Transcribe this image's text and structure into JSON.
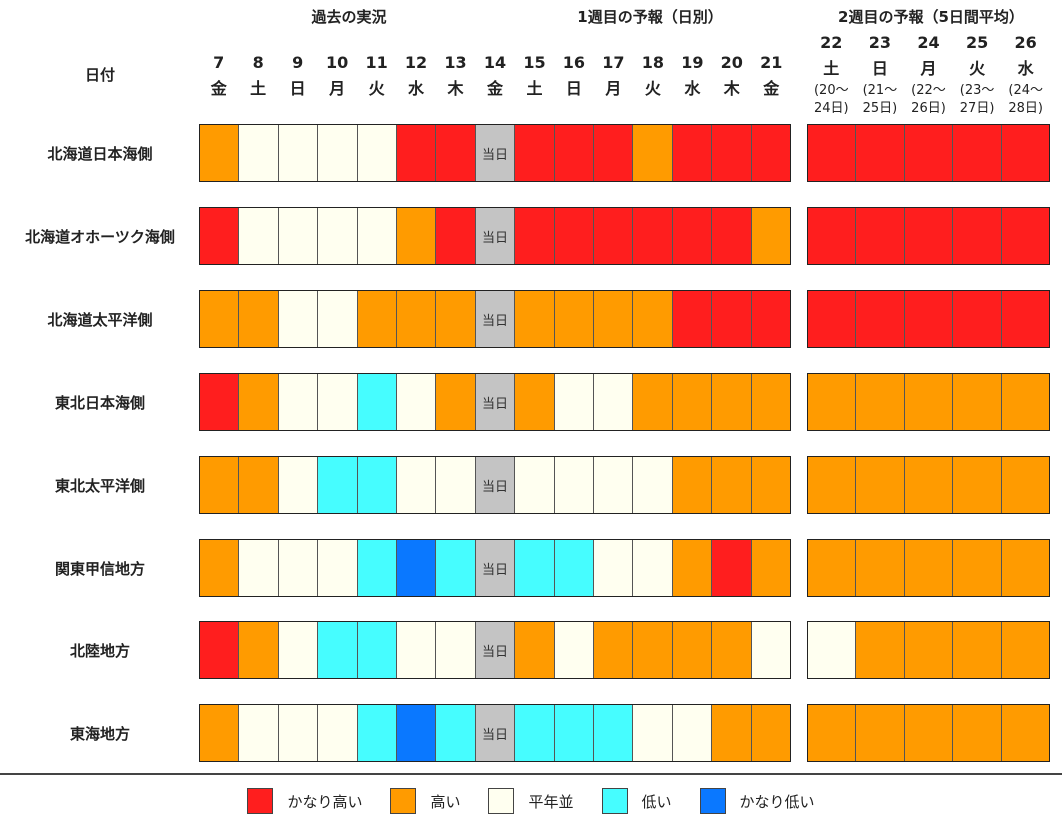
{
  "colors": {
    "very_high": "#ff1e1e",
    "high": "#ff9b00",
    "normal": "#fffff0",
    "low": "#46fdff",
    "very_low": "#0a78ff",
    "today": "#c4c4c4"
  },
  "headers": {
    "past": "過去の実況",
    "week1": "1週目の予報（日別）",
    "week2": "2週目の予報（5日間平均）",
    "date_label": "日付"
  },
  "today_label": "当日",
  "dates": [
    {
      "n": "7",
      "d": "金"
    },
    {
      "n": "8",
      "d": "土"
    },
    {
      "n": "9",
      "d": "日"
    },
    {
      "n": "10",
      "d": "月"
    },
    {
      "n": "11",
      "d": "火"
    },
    {
      "n": "12",
      "d": "水"
    },
    {
      "n": "13",
      "d": "木"
    },
    {
      "n": "14",
      "d": "金"
    },
    {
      "n": "15",
      "d": "土"
    },
    {
      "n": "16",
      "d": "日"
    },
    {
      "n": "17",
      "d": "月"
    },
    {
      "n": "18",
      "d": "火"
    },
    {
      "n": "19",
      "d": "水"
    },
    {
      "n": "20",
      "d": "木"
    },
    {
      "n": "21",
      "d": "金"
    }
  ],
  "week2_dates": [
    {
      "n": "22",
      "d": "土",
      "r1": "(20～",
      "r2": "24日)"
    },
    {
      "n": "23",
      "d": "日",
      "r1": "(21～",
      "r2": "25日)"
    },
    {
      "n": "24",
      "d": "月",
      "r1": "(22～",
      "r2": "26日)"
    },
    {
      "n": "25",
      "d": "火",
      "r1": "(23～",
      "r2": "27日)"
    },
    {
      "n": "26",
      "d": "水",
      "r1": "(24～",
      "r2": "28日)"
    }
  ],
  "legend": [
    {
      "key": "very_high",
      "label": "かなり高い"
    },
    {
      "key": "high",
      "label": "高い"
    },
    {
      "key": "normal",
      "label": "平年並"
    },
    {
      "key": "low",
      "label": "低い"
    },
    {
      "key": "very_low",
      "label": "かなり低い"
    }
  ],
  "chart_data": {
    "type": "heatmap",
    "x_daily": [
      "7",
      "8",
      "9",
      "10",
      "11",
      "12",
      "13",
      "14",
      "15",
      "16",
      "17",
      "18",
      "19",
      "20",
      "21"
    ],
    "x_week2": [
      "22",
      "23",
      "24",
      "25",
      "26"
    ],
    "today_index": 7,
    "rows": [
      {
        "name": "北海道日本海側",
        "daily": [
          "high",
          "normal",
          "normal",
          "normal",
          "normal",
          "very_high",
          "very_high",
          "today",
          "very_high",
          "very_high",
          "very_high",
          "high",
          "very_high",
          "very_high",
          "very_high"
        ],
        "week2": [
          "very_high",
          "very_high",
          "very_high",
          "very_high",
          "very_high"
        ]
      },
      {
        "name": "北海道オホーツク海側",
        "daily": [
          "very_high",
          "normal",
          "normal",
          "normal",
          "normal",
          "high",
          "very_high",
          "today",
          "very_high",
          "very_high",
          "very_high",
          "very_high",
          "very_high",
          "very_high",
          "high"
        ],
        "week2": [
          "very_high",
          "very_high",
          "very_high",
          "very_high",
          "very_high"
        ]
      },
      {
        "name": "北海道太平洋側",
        "daily": [
          "high",
          "high",
          "normal",
          "normal",
          "high",
          "high",
          "high",
          "today",
          "high",
          "high",
          "high",
          "high",
          "very_high",
          "very_high",
          "very_high"
        ],
        "week2": [
          "very_high",
          "very_high",
          "very_high",
          "very_high",
          "very_high"
        ]
      },
      {
        "name": "東北日本海側",
        "daily": [
          "very_high",
          "high",
          "normal",
          "normal",
          "low",
          "normal",
          "high",
          "today",
          "high",
          "normal",
          "normal",
          "high",
          "high",
          "high",
          "high"
        ],
        "week2": [
          "high",
          "high",
          "high",
          "high",
          "high"
        ]
      },
      {
        "name": "東北太平洋側",
        "daily": [
          "high",
          "high",
          "normal",
          "low",
          "low",
          "normal",
          "normal",
          "today",
          "normal",
          "normal",
          "normal",
          "normal",
          "high",
          "high",
          "high"
        ],
        "week2": [
          "high",
          "high",
          "high",
          "high",
          "high"
        ]
      },
      {
        "name": "関東甲信地方",
        "daily": [
          "high",
          "normal",
          "normal",
          "normal",
          "low",
          "very_low",
          "low",
          "today",
          "low",
          "low",
          "normal",
          "normal",
          "high",
          "very_high",
          "high"
        ],
        "week2": [
          "high",
          "high",
          "high",
          "high",
          "high"
        ]
      },
      {
        "name": "北陸地方",
        "daily": [
          "very_high",
          "high",
          "normal",
          "low",
          "low",
          "normal",
          "normal",
          "today",
          "high",
          "normal",
          "high",
          "high",
          "high",
          "high",
          "normal"
        ],
        "week2": [
          "normal",
          "high",
          "high",
          "high",
          "high"
        ]
      },
      {
        "name": "東海地方",
        "daily": [
          "high",
          "normal",
          "normal",
          "normal",
          "low",
          "very_low",
          "low",
          "today",
          "low",
          "low",
          "low",
          "normal",
          "normal",
          "high",
          "high"
        ],
        "week2": [
          "high",
          "high",
          "high",
          "high",
          "high"
        ]
      }
    ]
  }
}
